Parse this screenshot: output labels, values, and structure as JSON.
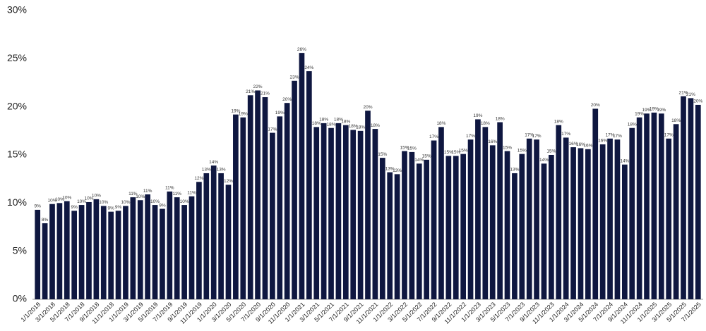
{
  "chart_data": {
    "type": "bar",
    "categories": [
      "1/1/2018",
      null,
      "3/1/2018",
      null,
      "5/1/2018",
      null,
      "7/1/2018",
      null,
      "9/1/2018",
      null,
      "11/1/2018",
      null,
      "1/1/2019",
      null,
      "3/1/2019",
      null,
      "5/1/2019",
      null,
      "7/1/2019",
      null,
      "9/1/2019",
      null,
      "11/1/2019",
      null,
      "1/1/2020",
      null,
      "3/1/2020",
      null,
      "5/1/2020",
      null,
      "7/1/2020",
      null,
      "9/1/2020",
      null,
      "11/1/2020",
      null,
      "1/1/2021",
      null,
      "3/1/2021",
      null,
      "5/1/2021",
      null,
      "7/1/2021",
      null,
      "9/1/2021",
      null,
      "11/1/2021",
      null,
      "1/1/2022",
      null,
      "3/1/2022",
      null,
      "5/1/2022",
      null,
      "7/1/2022",
      null,
      "9/1/2022",
      null,
      "11/1/2022",
      null,
      "1/1/2023",
      null,
      "3/1/2023",
      null,
      "5/1/2023",
      null,
      "7/1/2023",
      null,
      "9/1/2023",
      null,
      "11/1/2023",
      null,
      "1/1/2024",
      null,
      "3/1/2024",
      null,
      "5/1/2024",
      null,
      "7/1/2024",
      null,
      "9/1/2024",
      null,
      "11/1/2024",
      null,
      "1/1/2025",
      null,
      "3/1/2025",
      null,
      "5/1/2025",
      null,
      "7/1/2025"
    ],
    "values": [
      9.3,
      7.9,
      9.9,
      10.0,
      10.2,
      9.2,
      9.8,
      10.1,
      10.4,
      9.7,
      9.1,
      9.2,
      9.7,
      10.6,
      10.3,
      10.9,
      9.8,
      9.4,
      11.2,
      10.6,
      9.8,
      10.7,
      12.2,
      13.1,
      13.9,
      13.1,
      11.9,
      19.2,
      18.9,
      21.2,
      21.7,
      21.0,
      17.3,
      19.0,
      20.4,
      22.7,
      25.6,
      23.7,
      17.9,
      18.3,
      17.8,
      18.3,
      18.1,
      17.6,
      17.5,
      19.6,
      17.7,
      14.7,
      13.2,
      13.0,
      15.4,
      15.3,
      14.1,
      14.5,
      16.5,
      17.9,
      14.9,
      14.9,
      15.1,
      16.6,
      18.7,
      17.9,
      16.0,
      18.4,
      15.4,
      13.1,
      15.1,
      16.7,
      16.6,
      14.1,
      15.0,
      18.1,
      16.8,
      15.8,
      15.7,
      15.6,
      19.8,
      16.1,
      16.7,
      16.6,
      14.0,
      17.8,
      18.9,
      19.3,
      19.4,
      19.3,
      16.7,
      18.2,
      21.1,
      20.9,
      20.2
    ],
    "value_labels": [
      "9%",
      "8%",
      "10%",
      "10%",
      "10%",
      "9%",
      "10%",
      "10%",
      "10%",
      "10%",
      "9%",
      "9%",
      "10%",
      "11%",
      "10%",
      "11%",
      "10%",
      "9%",
      "11%",
      "11%",
      "10%",
      "11%",
      "12%",
      "13%",
      "14%",
      "13%",
      "12%",
      "19%",
      "19%",
      "21%",
      "22%",
      "21%",
      "17%",
      "19%",
      "20%",
      "23%",
      "26%",
      "24%",
      "18%",
      "18%",
      "18%",
      "18%",
      "18%",
      "18%",
      "18%",
      "20%",
      "18%",
      "15%",
      "13%",
      "13%",
      "15%",
      "15%",
      "14%",
      "15%",
      "17%",
      "18%",
      "15%",
      "15%",
      "15%",
      "17%",
      "19%",
      "18%",
      "16%",
      "18%",
      "15%",
      "13%",
      "15%",
      "17%",
      "17%",
      "14%",
      "15%",
      "18%",
      "17%",
      "16%",
      "16%",
      "16%",
      "20%",
      "16%",
      "17%",
      "17%",
      "14%",
      "18%",
      "19%",
      "19%",
      "19%",
      "19%",
      "17%",
      "18%",
      "21%",
      "21%",
      "20%"
    ],
    "color": "#0f1740",
    "ylim": [
      0,
      30
    ],
    "yticks": [
      {
        "value": 0,
        "label": "0%"
      },
      {
        "value": 5,
        "label": "5%"
      },
      {
        "value": 10,
        "label": "10%"
      },
      {
        "value": 15,
        "label": "15%"
      },
      {
        "value": 20,
        "label": "20%"
      },
      {
        "value": 25,
        "label": "25%"
      },
      {
        "value": 30,
        "label": "30%"
      }
    ],
    "grid": false
  }
}
